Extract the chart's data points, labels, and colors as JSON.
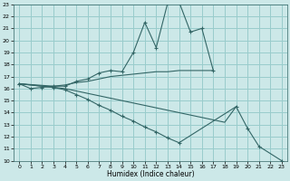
{
  "xlabel": "Humidex (Indice chaleur)",
  "xlim": [
    -0.5,
    23.5
  ],
  "ylim": [
    10,
    23
  ],
  "xticks": [
    0,
    1,
    2,
    3,
    4,
    5,
    6,
    7,
    8,
    9,
    10,
    11,
    12,
    13,
    14,
    15,
    16,
    17,
    18,
    19,
    20,
    21,
    22,
    23
  ],
  "yticks": [
    10,
    11,
    12,
    13,
    14,
    15,
    16,
    17,
    18,
    19,
    20,
    21,
    22,
    23
  ],
  "bg_color": "#cce8e8",
  "grid_color": "#99cccc",
  "line_color": "#336666",
  "lines": [
    {
      "x": [
        0,
        1,
        2,
        3,
        4,
        5,
        6,
        7,
        8,
        9,
        10,
        11,
        12,
        13,
        14,
        15,
        16,
        17
      ],
      "y": [
        16.4,
        16.0,
        16.1,
        16.2,
        16.2,
        16.6,
        16.8,
        17.3,
        17.5,
        17.4,
        19.0,
        21.5,
        19.4,
        23.1,
        23.2,
        20.7,
        21.0,
        17.5
      ],
      "has_markers": true
    },
    {
      "x": [
        0,
        3,
        4,
        5,
        6,
        7,
        8,
        9,
        10,
        11,
        12,
        13,
        14,
        15,
        16,
        17
      ],
      "y": [
        16.4,
        16.2,
        16.3,
        16.5,
        16.6,
        16.8,
        17.0,
        17.1,
        17.2,
        17.3,
        17.4,
        17.4,
        17.5,
        17.5,
        17.5,
        17.5
      ],
      "has_markers": false
    },
    {
      "x": [
        0,
        3,
        4,
        5,
        6,
        7,
        8,
        9,
        10,
        11,
        12,
        13,
        14,
        15,
        16,
        17,
        18,
        19
      ],
      "y": [
        16.4,
        16.1,
        16.0,
        15.8,
        15.6,
        15.4,
        15.2,
        15.0,
        14.8,
        14.6,
        14.4,
        14.2,
        14.0,
        13.8,
        13.6,
        13.4,
        13.2,
        14.5
      ],
      "has_markers": false
    },
    {
      "x": [
        0,
        3,
        4,
        5,
        6,
        7,
        8,
        9,
        10,
        11,
        12,
        13,
        14,
        19,
        20,
        21,
        23
      ],
      "y": [
        16.4,
        16.1,
        15.9,
        15.5,
        15.1,
        14.6,
        14.2,
        13.7,
        13.3,
        12.8,
        12.4,
        11.9,
        11.5,
        14.5,
        12.7,
        11.2,
        10.0
      ],
      "has_markers": true
    }
  ]
}
